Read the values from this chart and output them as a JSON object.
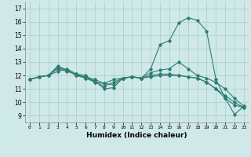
{
  "xlabel": "Humidex (Indice chaleur)",
  "ylabel": "",
  "bg_color": "#cfe8e8",
  "grid_color": "#aacccc",
  "line_color": "#2e7d72",
  "xlim": [
    -0.5,
    23.5
  ],
  "ylim": [
    8.5,
    17.5
  ],
  "xticks": [
    0,
    1,
    2,
    3,
    4,
    5,
    6,
    7,
    8,
    9,
    10,
    11,
    12,
    13,
    14,
    15,
    16,
    17,
    18,
    19,
    20,
    21,
    22,
    23
  ],
  "yticks": [
    9,
    10,
    11,
    12,
    13,
    14,
    15,
    16,
    17
  ],
  "series": [
    [
      11.7,
      11.9,
      12.0,
      12.7,
      12.4,
      12.0,
      11.8,
      11.6,
      11.0,
      11.1,
      11.8,
      11.9,
      11.8,
      12.5,
      14.3,
      14.6,
      15.9,
      16.3,
      16.1,
      15.3,
      11.7,
      10.3,
      9.1,
      9.7
    ],
    [
      11.7,
      11.9,
      12.0,
      12.3,
      12.5,
      12.1,
      11.8,
      11.5,
      11.4,
      11.7,
      11.8,
      11.9,
      11.8,
      11.9,
      12.0,
      12.0,
      12.0,
      11.9,
      11.8,
      11.5,
      11.0,
      10.5,
      10.0,
      9.6
    ],
    [
      11.7,
      11.9,
      12.0,
      12.5,
      12.3,
      12.1,
      12.0,
      11.5,
      11.2,
      11.5,
      11.8,
      11.9,
      11.8,
      12.0,
      12.1,
      12.1,
      12.0,
      11.9,
      11.8,
      11.5,
      11.0,
      10.3,
      9.8,
      9.6
    ],
    [
      11.7,
      11.9,
      12.0,
      12.6,
      12.4,
      12.0,
      11.9,
      11.7,
      11.4,
      11.3,
      11.8,
      11.9,
      11.8,
      12.2,
      12.4,
      12.5,
      13.0,
      12.5,
      12.0,
      11.8,
      11.5,
      11.0,
      10.3,
      9.7
    ]
  ]
}
